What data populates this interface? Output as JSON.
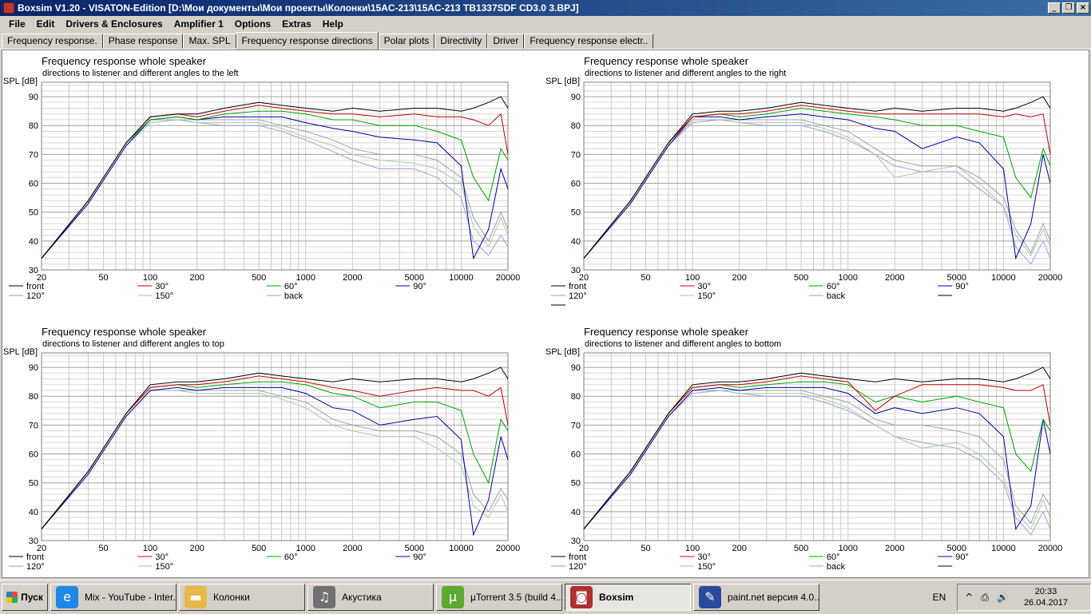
{
  "window": {
    "title": "Boxsim V1.20 - VISATON-Edition [D:\\Мои документы\\Мои проекты\\Колонки\\15AC-213\\15AC-213 TB1337SDF CD3.0 3.BPJ]",
    "minimize_glyph": "_",
    "restore_glyph": "❐",
    "close_glyph": "×"
  },
  "menu": [
    "File",
    "Edit",
    "Drivers & Enclosures",
    "Amplifier 1",
    "Options",
    "Extras",
    "Help"
  ],
  "tabs": [
    {
      "label": "Frequency response."
    },
    {
      "label": "Phase response"
    },
    {
      "label": "Max. SPL"
    },
    {
      "label": "Frequency response directions",
      "active": true
    },
    {
      "label": "Polar plots"
    },
    {
      "label": "Directivity"
    },
    {
      "label": "Driver"
    },
    {
      "label": "Frequency response electr.."
    }
  ],
  "series_styles": [
    {
      "name": "front",
      "color": "#000000"
    },
    {
      "name": "30°",
      "color": "#c00000"
    },
    {
      "name": "60°",
      "color": "#00a000"
    },
    {
      "name": "90°",
      "color": "#0000a0"
    },
    {
      "name": "120°",
      "color": "#a0a0a0"
    },
    {
      "name": "150°",
      "color": "#a8c8a8"
    },
    {
      "name": "back",
      "color": "#a0a0d8"
    }
  ],
  "chart_data": [
    {
      "type": "line",
      "title": "Frequency response whole speaker",
      "subtitle": "directions to listener and different angles to the left",
      "ylabel": "SPL [dB]",
      "xscale": "log",
      "xlim": [
        20,
        20000
      ],
      "ylim": [
        30,
        95
      ],
      "x_ticks": [
        "20",
        "50",
        "100",
        "200",
        "500",
        "1000",
        "2000",
        "5000",
        "10000",
        "20000"
      ],
      "y_ticks": [
        "30",
        "40",
        "50",
        "60",
        "70",
        "80",
        "90"
      ],
      "grid": true,
      "legend": [
        "front",
        "30°",
        "60°",
        "90°",
        "120°",
        "150°",
        "back"
      ],
      "x": [
        20,
        40,
        70,
        100,
        150,
        200,
        300,
        500,
        700,
        1000,
        1500,
        2000,
        3000,
        5000,
        7000,
        10000,
        12000,
        15000,
        18000,
        20000
      ],
      "series": [
        {
          "name": "front",
          "values": [
            34,
            54,
            74,
            83,
            84,
            84,
            86,
            88,
            87,
            86,
            85,
            86,
            85,
            86,
            86,
            85,
            86,
            88,
            90,
            86
          ]
        },
        {
          "name": "30°",
          "values": [
            34,
            54,
            74,
            83,
            84,
            83,
            85,
            87,
            86,
            85,
            84,
            84,
            83,
            84,
            83,
            83,
            82,
            80,
            84,
            70
          ]
        },
        {
          "name": "60°",
          "values": [
            34,
            54,
            74,
            82,
            83,
            82,
            84,
            85,
            85,
            84,
            82,
            82,
            80,
            80,
            78,
            75,
            62,
            54,
            72,
            68
          ]
        },
        {
          "name": "90°",
          "values": [
            34,
            53,
            73,
            82,
            83,
            82,
            83,
            83,
            83,
            81,
            79,
            78,
            76,
            75,
            74,
            66,
            34,
            44,
            65,
            58
          ]
        },
        {
          "name": "120°",
          "values": [
            34,
            53,
            73,
            82,
            82,
            82,
            82,
            82,
            80,
            78,
            75,
            72,
            70,
            70,
            68,
            62,
            48,
            40,
            50,
            44
          ]
        },
        {
          "name": "150°",
          "values": [
            34,
            53,
            73,
            81,
            82,
            81,
            81,
            81,
            79,
            76,
            73,
            70,
            68,
            67,
            65,
            60,
            45,
            38,
            48,
            42
          ]
        },
        {
          "name": "back",
          "values": [
            34,
            53,
            73,
            81,
            82,
            81,
            80,
            80,
            78,
            75,
            71,
            68,
            65,
            65,
            62,
            55,
            40,
            35,
            42,
            38
          ]
        }
      ]
    },
    {
      "type": "line",
      "title": "Frequency response whole speaker",
      "subtitle": "directions to listener and different angles to the right",
      "ylabel": "SPL [dB]",
      "xscale": "log",
      "xlim": [
        20,
        20000
      ],
      "ylim": [
        30,
        95
      ],
      "x_ticks": [
        "20",
        "50",
        "100",
        "200",
        "500",
        "1000",
        "2000",
        "5000",
        "10000",
        "20000"
      ],
      "y_ticks": [
        "30",
        "40",
        "50",
        "60",
        "70",
        "80",
        "90"
      ],
      "grid": true,
      "legend": [
        "front",
        "30°",
        "60°",
        "90°",
        "120°",
        "150°",
        "back",
        "",
        ""
      ],
      "x": [
        20,
        40,
        70,
        100,
        150,
        200,
        300,
        500,
        700,
        1000,
        1500,
        2000,
        3000,
        5000,
        7000,
        10000,
        12000,
        15000,
        18000,
        20000
      ],
      "series": [
        {
          "name": "front",
          "values": [
            34,
            54,
            74,
            84,
            85,
            85,
            86,
            88,
            87,
            86,
            85,
            86,
            85,
            86,
            86,
            85,
            86,
            88,
            90,
            86
          ]
        },
        {
          "name": "30°",
          "values": [
            34,
            54,
            74,
            83,
            84,
            84,
            85,
            87,
            86,
            85,
            84,
            84,
            84,
            84,
            84,
            83,
            84,
            83,
            84,
            70
          ]
        },
        {
          "name": "60°",
          "values": [
            34,
            54,
            74,
            83,
            84,
            83,
            84,
            86,
            85,
            84,
            83,
            82,
            80,
            80,
            78,
            76,
            62,
            55,
            72,
            66
          ]
        },
        {
          "name": "90°",
          "values": [
            34,
            53,
            73,
            83,
            83,
            82,
            83,
            84,
            83,
            82,
            79,
            78,
            72,
            76,
            74,
            65,
            34,
            46,
            70,
            60
          ]
        },
        {
          "name": "120°",
          "values": [
            34,
            53,
            73,
            82,
            82,
            82,
            82,
            82,
            80,
            78,
            72,
            68,
            66,
            66,
            62,
            55,
            44,
            36,
            46,
            40
          ]
        },
        {
          "name": "150°",
          "values": [
            34,
            53,
            73,
            82,
            82,
            81,
            81,
            81,
            79,
            76,
            70,
            62,
            64,
            66,
            60,
            52,
            42,
            35,
            44,
            38
          ]
        },
        {
          "name": "back",
          "values": [
            34,
            53,
            73,
            81,
            82,
            81,
            80,
            80,
            78,
            75,
            70,
            66,
            64,
            64,
            58,
            52,
            38,
            32,
            40,
            34
          ]
        }
      ]
    },
    {
      "type": "line",
      "title": "Frequency response whole speaker",
      "subtitle": "directions to listener and different angles to top",
      "ylabel": "SPL [dB]",
      "xscale": "log",
      "xlim": [
        20,
        20000
      ],
      "ylim": [
        30,
        95
      ],
      "x_ticks": [
        "20",
        "50",
        "100",
        "200",
        "500",
        "1000",
        "2000",
        "5000",
        "10000",
        "20000"
      ],
      "y_ticks": [
        "30",
        "40",
        "50",
        "60",
        "70",
        "80",
        "90"
      ],
      "grid": true,
      "legend": [
        "front",
        "30°",
        "60°",
        "90°",
        "120°",
        "150°"
      ],
      "x": [
        20,
        40,
        70,
        100,
        150,
        200,
        300,
        500,
        700,
        1000,
        1500,
        2000,
        3000,
        5000,
        7000,
        10000,
        12000,
        15000,
        18000,
        20000
      ],
      "series": [
        {
          "name": "front",
          "values": [
            34,
            54,
            74,
            84,
            85,
            85,
            86,
            88,
            87,
            86,
            85,
            86,
            85,
            86,
            86,
            85,
            86,
            88,
            90,
            86
          ]
        },
        {
          "name": "30°",
          "values": [
            34,
            54,
            74,
            83,
            84,
            84,
            85,
            87,
            86,
            85,
            83,
            82,
            80,
            82,
            83,
            82,
            82,
            80,
            83,
            70
          ]
        },
        {
          "name": "60°",
          "values": [
            34,
            54,
            74,
            83,
            84,
            83,
            84,
            85,
            85,
            84,
            81,
            80,
            76,
            78,
            78,
            75,
            60,
            50,
            72,
            68
          ]
        },
        {
          "name": "90°",
          "values": [
            34,
            53,
            73,
            82,
            83,
            82,
            83,
            83,
            83,
            81,
            76,
            75,
            70,
            72,
            73,
            65,
            32,
            44,
            66,
            58
          ]
        },
        {
          "name": "120°",
          "values": [
            34,
            53,
            73,
            82,
            82,
            82,
            82,
            82,
            80,
            78,
            72,
            70,
            68,
            68,
            66,
            60,
            46,
            40,
            48,
            44
          ]
        },
        {
          "name": "150°",
          "values": [
            34,
            53,
            73,
            82,
            82,
            81,
            81,
            81,
            79,
            76,
            70,
            68,
            66,
            66,
            62,
            56,
            42,
            38,
            46,
            40
          ]
        }
      ]
    },
    {
      "type": "line",
      "title": "Frequency response whole speaker",
      "subtitle": "directions to listener and different angles to bottom",
      "ylabel": "SPL [dB]",
      "xscale": "log",
      "xlim": [
        20,
        20000
      ],
      "ylim": [
        30,
        95
      ],
      "x_ticks": [
        "20",
        "50",
        "100",
        "200",
        "500",
        "1000",
        "2000",
        "5000",
        "10000",
        "20000"
      ],
      "y_ticks": [
        "30",
        "40",
        "50",
        "60",
        "70",
        "80",
        "90"
      ],
      "grid": true,
      "legend": [
        "front",
        "30°",
        "60°",
        "90°",
        "120°",
        "150°",
        "back",
        ""
      ],
      "x": [
        20,
        40,
        70,
        100,
        150,
        200,
        300,
        500,
        700,
        1000,
        1500,
        2000,
        3000,
        5000,
        7000,
        10000,
        12000,
        15000,
        18000,
        20000
      ],
      "series": [
        {
          "name": "front",
          "values": [
            34,
            54,
            74,
            84,
            85,
            85,
            86,
            88,
            87,
            86,
            85,
            86,
            85,
            86,
            86,
            85,
            86,
            88,
            90,
            86
          ]
        },
        {
          "name": "30°",
          "values": [
            34,
            54,
            74,
            83,
            84,
            84,
            85,
            87,
            86,
            85,
            75,
            80,
            84,
            84,
            84,
            83,
            82,
            82,
            84,
            70
          ]
        },
        {
          "name": "60°",
          "values": [
            34,
            54,
            74,
            83,
            84,
            83,
            84,
            85,
            85,
            84,
            78,
            80,
            78,
            80,
            78,
            76,
            60,
            54,
            72,
            68
          ]
        },
        {
          "name": "90°",
          "values": [
            34,
            53,
            73,
            82,
            83,
            82,
            83,
            83,
            83,
            81,
            74,
            76,
            74,
            76,
            74,
            66,
            34,
            42,
            72,
            60
          ]
        },
        {
          "name": "120°",
          "values": [
            34,
            53,
            73,
            82,
            82,
            82,
            82,
            82,
            80,
            78,
            72,
            70,
            70,
            68,
            66,
            58,
            42,
            36,
            46,
            42
          ]
        },
        {
          "name": "150°",
          "values": [
            34,
            53,
            73,
            82,
            82,
            81,
            81,
            81,
            79,
            76,
            70,
            66,
            62,
            64,
            60,
            52,
            40,
            34,
            44,
            38
          ]
        },
        {
          "name": "back",
          "values": [
            34,
            53,
            73,
            81,
            82,
            81,
            80,
            80,
            78,
            75,
            70,
            66,
            64,
            62,
            58,
            50,
            38,
            32,
            40,
            34
          ]
        }
      ]
    }
  ],
  "taskbar": {
    "start_label": "Пуск",
    "items": [
      {
        "label": "Mix - YouTube - Inter...",
        "icon": "internet-explorer-icon",
        "color": "#1e88e5",
        "glyph": "e"
      },
      {
        "label": "Колонки",
        "icon": "folder-icon",
        "color": "#e6b84a",
        "glyph": "▬"
      },
      {
        "label": "Акустика",
        "icon": "speaker-icon",
        "color": "#707070",
        "glyph": "♫"
      },
      {
        "label": "µTorrent 3.5  (build 4...",
        "icon": "utorrent-icon",
        "color": "#5fa832",
        "glyph": "µ"
      },
      {
        "label": "Boxsim",
        "icon": "boxsim-icon",
        "color": "#b03030",
        "glyph": "◙",
        "active": true
      },
      {
        "label": "paint.net версия 4.0....",
        "icon": "paintnet-icon",
        "color": "#2a4a9a",
        "glyph": "✎"
      }
    ],
    "language": "EN",
    "tray_icons": [
      "^",
      "⎙",
      "🔊"
    ],
    "time": "20:33",
    "date": "26.04.2017"
  }
}
